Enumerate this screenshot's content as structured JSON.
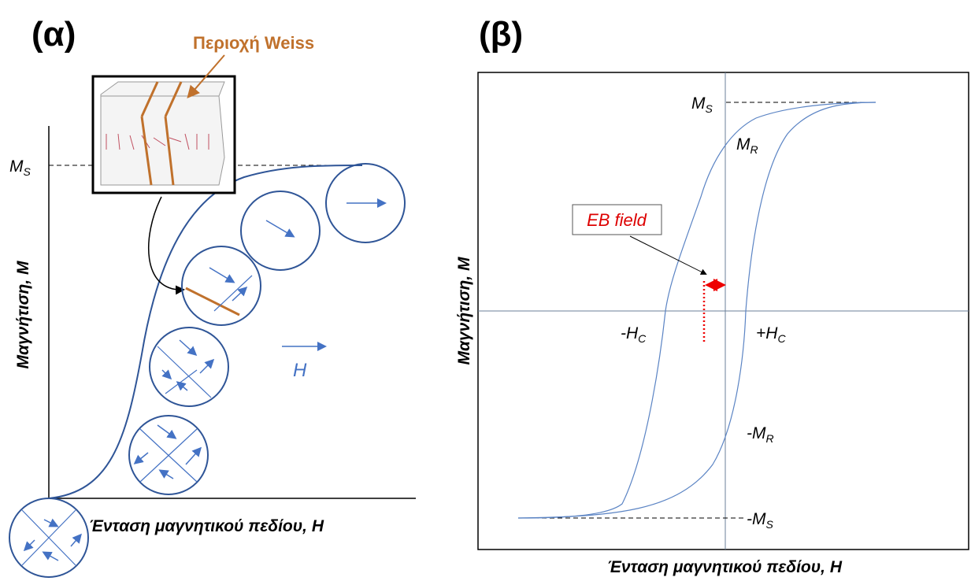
{
  "panel_a": {
    "label": "(α)",
    "weiss_label": "Περιοχή Weiss",
    "ms": {
      "main": "M",
      "sub": "S"
    },
    "y_axis": "Μαγνήτιση, M",
    "x_axis": "Ένταση μαγνητικού πεδίου, H",
    "field_arrow": "H"
  },
  "panel_b": {
    "label": "(β)",
    "ms": {
      "main": "M",
      "sub": "S"
    },
    "mr": {
      "main": "M",
      "sub": "R"
    },
    "eb_field": "EB field",
    "neg_hc": {
      "main": "-H",
      "sub": "C"
    },
    "pos_hc": {
      "main": "+H",
      "sub": "C"
    },
    "neg_mr": {
      "main": "-M",
      "sub": "R"
    },
    "neg_ms": {
      "main": "-M",
      "sub": "S"
    },
    "y_axis": "Μαγνήτιση, M",
    "x_axis": "Ένταση μαγνητικού πεδίου, H"
  }
}
